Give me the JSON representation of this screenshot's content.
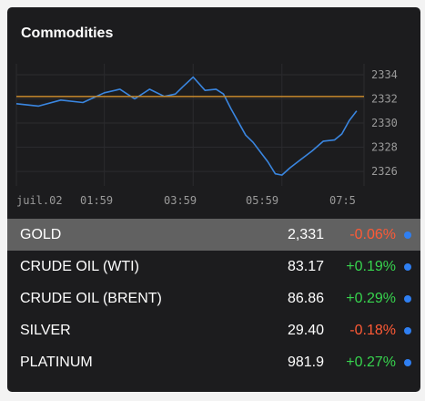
{
  "widget": {
    "title": "Commodities"
  },
  "colors": {
    "background": "#1c1c1e",
    "line": "#3a86e0",
    "reference_line": "#c88a2d",
    "negative": "#ff5a36",
    "positive": "#37d44e",
    "dot": "#2f7ff2",
    "selected_row": "#616161"
  },
  "chart_data": {
    "type": "line",
    "series": [
      {
        "x": [
          "00:00",
          "00:30",
          "01:00",
          "01:30",
          "01:59",
          "02:20",
          "02:40",
          "03:00",
          "03:20",
          "03:35",
          "03:45",
          "03:59",
          "04:15",
          "04:30",
          "04:40",
          "04:50",
          "05:00",
          "05:10",
          "05:20",
          "05:30",
          "05:40",
          "05:50",
          "05:59",
          "06:10",
          "06:25",
          "06:40",
          "06:55",
          "07:10",
          "07:20",
          "07:30",
          "07:40"
        ],
        "values": [
          2331.6,
          2331.4,
          2331.9,
          2331.7,
          2332.5,
          2332.8,
          2332.0,
          2332.8,
          2332.2,
          2332.4,
          2333.0,
          2333.8,
          2332.7,
          2332.8,
          2332.4,
          2331.2,
          2330.1,
          2329.0,
          2328.4,
          2327.6,
          2326.8,
          2325.8,
          2325.7,
          2326.3,
          2327.0,
          2327.7,
          2328.5,
          2328.6,
          2329.1,
          2330.2,
          2331.0
        ]
      }
    ],
    "reference_value": 2332.2,
    "x_ticks": [
      "juil.02",
      "01:59",
      "03:59",
      "05:59",
      "07:5"
    ],
    "y_ticks": [
      2334,
      2332,
      2330,
      2328,
      2326
    ],
    "ylim": [
      2324.8,
      2334.9
    ],
    "xlim_minutes": [
      0,
      470
    ]
  },
  "rows": [
    {
      "name": "GOLD",
      "price": "2,331",
      "change": "-0.06%",
      "direction": "neg",
      "selected": true
    },
    {
      "name": "CRUDE OIL (WTI)",
      "price": "83.17",
      "change": "+0.19%",
      "direction": "pos",
      "selected": false
    },
    {
      "name": "CRUDE OIL (BRENT)",
      "price": "86.86",
      "change": "+0.29%",
      "direction": "pos",
      "selected": false
    },
    {
      "name": "SILVER",
      "price": "29.40",
      "change": "-0.18%",
      "direction": "neg",
      "selected": false
    },
    {
      "name": "PLATINUM",
      "price": "981.9",
      "change": "+0.27%",
      "direction": "pos",
      "selected": false
    }
  ]
}
